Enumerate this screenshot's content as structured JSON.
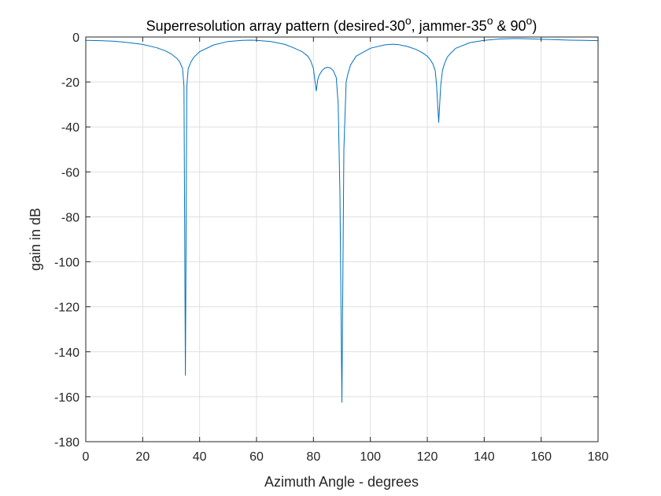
{
  "chart_data": {
    "type": "line",
    "title": {
      "text": "Superresolution array pattern (desired-30",
      "parts": [
        {
          "text": "Superresolution array pattern (desired-30",
          "sup": false
        },
        {
          "text": "o",
          "sup": true
        },
        {
          "text": ", jammer-35",
          "sup": false
        },
        {
          "text": "o",
          "sup": true
        },
        {
          "text": " & 90",
          "sup": false
        },
        {
          "text": "o",
          "sup": true
        },
        {
          "text": ")",
          "sup": false
        }
      ]
    },
    "xlabel": "Azimuth Angle - degrees",
    "ylabel": "gain in dB",
    "xlim": [
      0,
      180
    ],
    "ylim": [
      -180,
      0
    ],
    "xticks": [
      0,
      20,
      40,
      60,
      80,
      100,
      120,
      140,
      160,
      180
    ],
    "yticks": [
      0,
      -20,
      -40,
      -60,
      -80,
      -100,
      -120,
      -140,
      -160,
      -180
    ],
    "grid": true,
    "line_color": "#0072BD",
    "series": [
      {
        "x": [
          0,
          5,
          10,
          15,
          20,
          25,
          28,
          30,
          32,
          33,
          34,
          34.5,
          35,
          35.5,
          36,
          37,
          38,
          40,
          45,
          50,
          55,
          58,
          60,
          65,
          70,
          73,
          76,
          78,
          79,
          80,
          80.5,
          81,
          81.5,
          82,
          83,
          84,
          85,
          86,
          87,
          88,
          88.7,
          89.3,
          90,
          90.7,
          91.5,
          92,
          93,
          95,
          100,
          105,
          108,
          110,
          113,
          116,
          118,
          120,
          121,
          122,
          122.8,
          123.3,
          124,
          124.7,
          125.3,
          126,
          127,
          128,
          130,
          135,
          140,
          145,
          150,
          152,
          155,
          160,
          165,
          170,
          175,
          180
        ],
        "y": [
          -1.5,
          -1.6,
          -1.9,
          -2.5,
          -3.3,
          -4.8,
          -6.2,
          -7.5,
          -9.5,
          -11,
          -14,
          -22,
          -150.5,
          -22,
          -14,
          -11,
          -9,
          -6.5,
          -3.5,
          -2.0,
          -1.5,
          -1.4,
          -1.5,
          -2.0,
          -3.3,
          -4.8,
          -6.5,
          -8.5,
          -10.5,
          -14,
          -19,
          -24,
          -19,
          -17,
          -15,
          -13.8,
          -13.5,
          -13.8,
          -15,
          -18,
          -30,
          -70,
          -162.5,
          -50,
          -20,
          -17,
          -12.5,
          -8.5,
          -5.0,
          -3.5,
          -3.2,
          -3.4,
          -4.2,
          -5.5,
          -6.8,
          -8.5,
          -10,
          -12,
          -15,
          -22,
          -38,
          -22,
          -15,
          -12,
          -9,
          -7.5,
          -5.0,
          -2.5,
          -1.5,
          -0.9,
          -0.7,
          -0.7,
          -0.8,
          -1.0,
          -1.2,
          -1.4,
          -1.5,
          -1.6
        ]
      }
    ]
  }
}
